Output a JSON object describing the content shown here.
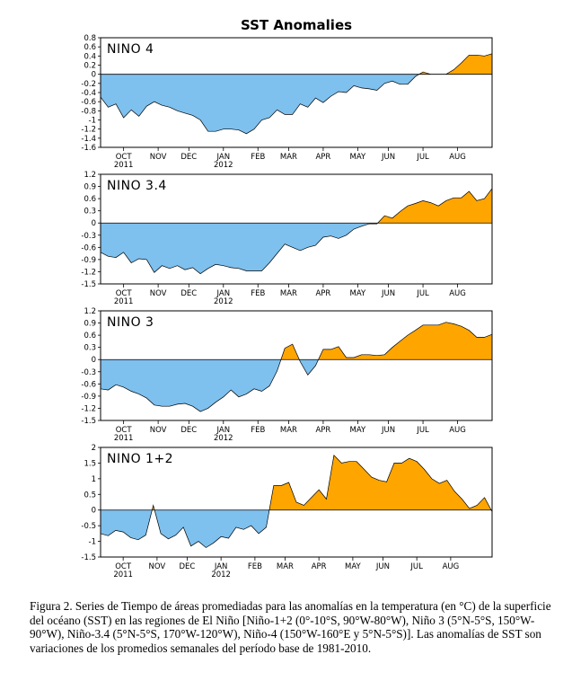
{
  "chart_data": {
    "type": "area",
    "title": "SST Anomalies",
    "pos_color": "#ffa500",
    "neg_color": "#7ec0ee",
    "months": [
      {
        "label": "OCT",
        "year": "2011",
        "week": 3
      },
      {
        "label": "NOV",
        "year": "",
        "week": 7.5
      },
      {
        "label": "DEC",
        "year": "",
        "week": 11.5
      },
      {
        "label": "JAN",
        "year": "2012",
        "week": 16
      },
      {
        "label": "FEB",
        "year": "",
        "week": 20.5
      },
      {
        "label": "MAR",
        "year": "",
        "week": 24.5
      },
      {
        "label": "APR",
        "year": "",
        "week": 29
      },
      {
        "label": "MAY",
        "year": "",
        "week": 33.5
      },
      {
        "label": "JUN",
        "year": "",
        "week": 37.5
      },
      {
        "label": "JUL",
        "year": "",
        "week": 42
      },
      {
        "label": "AUG",
        "year": "",
        "week": 46.5
      }
    ],
    "panels": [
      {
        "name": "NINO 4",
        "ylim": [
          -1.6,
          0.8
        ],
        "yticks": [
          "0.8",
          "0.6",
          "0.4",
          "0.2",
          "0",
          "-0.2",
          "-0.4",
          "-0.6",
          "-0.8",
          "-1",
          "-1.2",
          "-1.4",
          "-1.6"
        ],
        "ytick_values": [
          0.8,
          0.6,
          0.4,
          0.2,
          0,
          -0.2,
          -0.4,
          -0.6,
          -0.8,
          -1,
          -1.2,
          -1.4,
          -1.6
        ],
        "values": [
          -0.5,
          -0.72,
          -0.65,
          -0.95,
          -0.78,
          -0.92,
          -0.7,
          -0.6,
          -0.68,
          -0.72,
          -0.8,
          -0.85,
          -0.9,
          -1.0,
          -1.25,
          -1.25,
          -1.2,
          -1.2,
          -1.22,
          -1.3,
          -1.2,
          -1.0,
          -0.95,
          -0.78,
          -0.88,
          -0.88,
          -0.65,
          -0.72,
          -0.52,
          -0.62,
          -0.48,
          -0.38,
          -0.4,
          -0.25,
          -0.3,
          -0.32,
          -0.35,
          -0.2,
          -0.15,
          -0.22,
          -0.22,
          -0.05,
          0.05,
          0.0,
          0.0,
          0.0,
          0.1,
          0.25,
          0.42,
          0.42,
          0.4,
          0.45
        ]
      },
      {
        "name": "NINO 3.4",
        "ylim": [
          -1.5,
          1.2
        ],
        "yticks": [
          "1.2",
          "0.9",
          "0.6",
          "0.3",
          "0",
          "-0.3",
          "-0.6",
          "-0.9",
          "-1.2",
          "-1.5"
        ],
        "ytick_values": [
          1.2,
          0.9,
          0.6,
          0.3,
          0,
          -0.3,
          -0.6,
          -0.9,
          -1.2,
          -1.5
        ],
        "values": [
          -0.72,
          -0.82,
          -0.85,
          -0.72,
          -0.98,
          -0.88,
          -0.9,
          -1.22,
          -1.05,
          -1.12,
          -1.05,
          -1.15,
          -1.1,
          -1.25,
          -1.12,
          -1.02,
          -1.05,
          -1.1,
          -1.12,
          -1.18,
          -1.18,
          -1.18,
          -0.98,
          -0.75,
          -0.52,
          -0.6,
          -0.68,
          -0.6,
          -0.55,
          -0.35,
          -0.32,
          -0.38,
          -0.3,
          -0.15,
          -0.08,
          -0.02,
          -0.02,
          0.18,
          0.12,
          0.28,
          0.42,
          0.48,
          0.55,
          0.5,
          0.42,
          0.55,
          0.62,
          0.62,
          0.78,
          0.55,
          0.6,
          0.85
        ]
      },
      {
        "name": "NINO 3",
        "ylim": [
          -1.5,
          1.2
        ],
        "yticks": [
          "1.2",
          "0.9",
          "0.6",
          "0.3",
          "0",
          "-0.3",
          "-0.6",
          "-0.9",
          "-1.2",
          "-1.5"
        ],
        "ytick_values": [
          1.2,
          0.9,
          0.6,
          0.3,
          0,
          -0.3,
          -0.6,
          -0.9,
          -1.2,
          -1.5
        ],
        "values": [
          -0.72,
          -0.75,
          -0.62,
          -0.68,
          -0.78,
          -0.85,
          -0.95,
          -1.12,
          -1.15,
          -1.15,
          -1.1,
          -1.08,
          -1.15,
          -1.28,
          -1.2,
          -1.05,
          -0.92,
          -0.75,
          -0.92,
          -0.85,
          -0.72,
          -0.78,
          -0.65,
          -0.28,
          0.28,
          0.38,
          -0.05,
          -0.38,
          -0.15,
          0.25,
          0.25,
          0.32,
          0.05,
          0.05,
          0.12,
          0.12,
          0.1,
          0.12,
          0.3,
          0.45,
          0.6,
          0.72,
          0.85,
          0.85,
          0.85,
          0.92,
          0.88,
          0.82,
          0.72,
          0.55,
          0.55,
          0.62
        ]
      },
      {
        "name": "NINO 1+2",
        "ylim": [
          -1.5,
          2.0
        ],
        "yticks": [
          "2",
          "1.5",
          "1",
          "0.5",
          "0",
          "-0.5",
          "-1",
          "-1.5"
        ],
        "ytick_values": [
          2,
          1.5,
          1,
          0.5,
          0,
          -0.5,
          -1,
          -1.5
        ],
        "values": [
          -0.75,
          -0.82,
          -0.65,
          -0.7,
          -0.88,
          -0.95,
          -0.8,
          0.15,
          -0.75,
          -0.92,
          -0.8,
          -0.55,
          -1.15,
          -1.0,
          -1.2,
          -1.05,
          -0.85,
          -0.9,
          -0.55,
          -0.62,
          -0.5,
          -0.75,
          -0.55,
          0.78,
          0.78,
          0.88,
          0.25,
          0.15,
          0.4,
          0.65,
          0.35,
          1.75,
          1.5,
          1.55,
          1.55,
          1.3,
          1.05,
          0.95,
          0.9,
          1.5,
          1.5,
          1.65,
          1.55,
          1.3,
          1.0,
          0.85,
          0.95,
          0.6,
          0.35,
          0.05,
          0.15,
          0.4,
          -0.05
        ]
      }
    ]
  },
  "caption": "Figura 2. Series de Tiempo de áreas promediadas para las anomalías en la temperatura (en °C) de la superficie del océano (SST) en las regiones de El Niño [Niño-1+2 (0°-10°S, 90°W-80°W), Niño 3 (5°N-5°S, 150°W-90°W), Niño-3.4 (5°N-5°S, 170°W-120°W), Niño-4 (150°W-160°E y 5°N-5°S)]. Las anomalías de SST son variaciones de los promedios semanales del período base de 1981-2010."
}
